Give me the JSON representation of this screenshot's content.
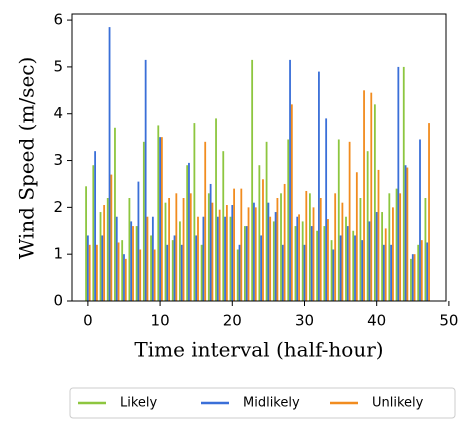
{
  "chart_data": {
    "type": "bar",
    "x_label": "Time interval (half-hour)",
    "y_label": "Wind Speed (m/sec)",
    "x": [
      0,
      1,
      2,
      3,
      4,
      5,
      6,
      7,
      8,
      9,
      10,
      11,
      12,
      13,
      14,
      15,
      16,
      17,
      18,
      19,
      20,
      21,
      22,
      23,
      24,
      25,
      26,
      27,
      28,
      29,
      30,
      31,
      32,
      33,
      34,
      35,
      36,
      37,
      38,
      39,
      40,
      41,
      42,
      43,
      44,
      45,
      46,
      47
    ],
    "series": [
      {
        "name": "Likely",
        "color": "#8dc63f",
        "values": [
          2.45,
          2.9,
          1.9,
          2.2,
          3.7,
          1.3,
          2.2,
          1.6,
          3.4,
          1.4,
          3.75,
          2.1,
          1.3,
          1.7,
          2.9,
          3.8,
          1.2,
          2.3,
          3.9,
          3.2,
          1.8,
          1.1,
          1.6,
          5.15,
          2.9,
          3.4,
          1.7,
          2.3,
          3.45,
          1.6,
          1.7,
          2.3,
          1.5,
          1.6,
          1.3,
          3.45,
          1.8,
          1.5,
          2.2,
          3.2,
          4.2,
          1.9,
          2.3,
          2.4,
          5.0,
          0.9,
          1.2,
          2.2
        ]
      },
      {
        "name": "Midlikely",
        "color": "#3a6fd8",
        "values": [
          1.4,
          3.2,
          1.4,
          5.85,
          1.8,
          1.0,
          1.7,
          2.55,
          5.15,
          1.8,
          3.5,
          1.2,
          1.4,
          1.2,
          2.95,
          1.4,
          1.8,
          2.5,
          1.8,
          1.8,
          2.05,
          1.2,
          1.6,
          2.1,
          1.4,
          2.1,
          1.9,
          1.2,
          5.15,
          1.8,
          1.2,
          1.6,
          4.9,
          3.9,
          1.1,
          1.4,
          1.6,
          1.4,
          1.3,
          1.7,
          1.9,
          1.2,
          1.2,
          5.0,
          2.9,
          1.0,
          3.45,
          1.25
        ]
      },
      {
        "name": "Unlikely",
        "color": "#f18c1f",
        "values": [
          1.2,
          1.2,
          2.05,
          2.7,
          1.25,
          0.9,
          1.6,
          1.1,
          1.8,
          1.1,
          3.5,
          2.2,
          2.3,
          2.2,
          2.3,
          1.8,
          3.4,
          2.1,
          1.95,
          2.05,
          2.4,
          2.4,
          2.0,
          2.0,
          2.6,
          1.8,
          2.2,
          2.5,
          4.2,
          1.85,
          2.35,
          2.0,
          2.2,
          1.75,
          2.3,
          2.1,
          3.4,
          2.75,
          4.5,
          4.45,
          2.8,
          1.55,
          2.0,
          2.3,
          2.85,
          1.0,
          1.3,
          3.8
        ]
      }
    ],
    "xlim": [
      -2.2,
      49.6
    ],
    "ylim": [
      0,
      6.13
    ],
    "xticks": [
      0,
      10,
      20,
      30,
      40,
      50
    ],
    "yticks": [
      0,
      1,
      2,
      3,
      4,
      5,
      6
    ]
  }
}
